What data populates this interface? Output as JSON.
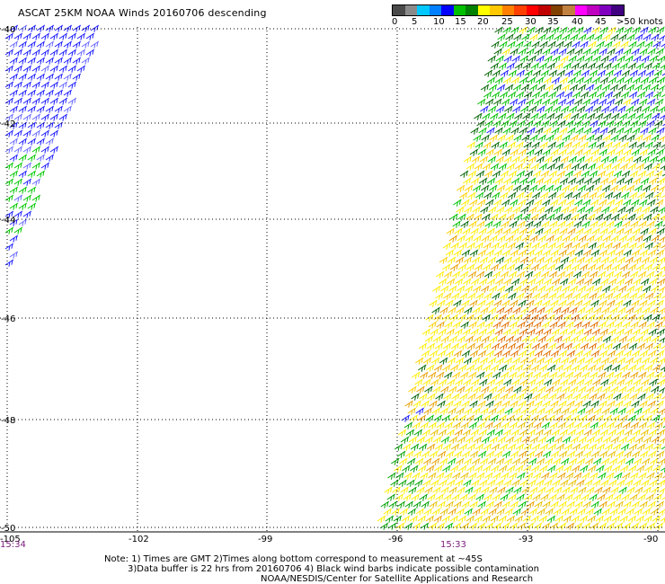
{
  "title": "ASCAT 25KM NOAA Winds 20160706 descending",
  "scale": {
    "labels": [
      "0",
      "5",
      "10",
      "15",
      "20",
      "25",
      "30",
      "35",
      "40",
      "45",
      ">50 knots"
    ],
    "colors": [
      "#4a4a4a",
      "#8a8a8a",
      "#00c8ff",
      "#0080ff",
      "#0000ff",
      "#00c000",
      "#008000",
      "#ffff00",
      "#ffc800",
      "#ff8000",
      "#ff4000",
      "#ff0000",
      "#c00000",
      "#804000",
      "#c08040",
      "#ff00ff",
      "#c000c0",
      "#8000c0",
      "#400080"
    ]
  },
  "lat_labels": [
    "-40",
    "-42",
    "-44",
    "-46",
    "-48",
    "-50"
  ],
  "lon_labels": [
    "-105",
    "-102",
    "-99",
    "-96",
    "-93",
    "-90"
  ],
  "time_labels": [
    "15:34",
    "15:33"
  ],
  "notes": {
    "line1": "Note: 1) Times are GMT 2)Times along bottom correspond to measurement at ~45S",
    "line2": "3)Data buffer is 22 hrs from 20160706 4) Black wind barbs indicate possible contamination",
    "line3": "NOAA/NESDIS/Center for Satellite Applications and Research"
  }
}
